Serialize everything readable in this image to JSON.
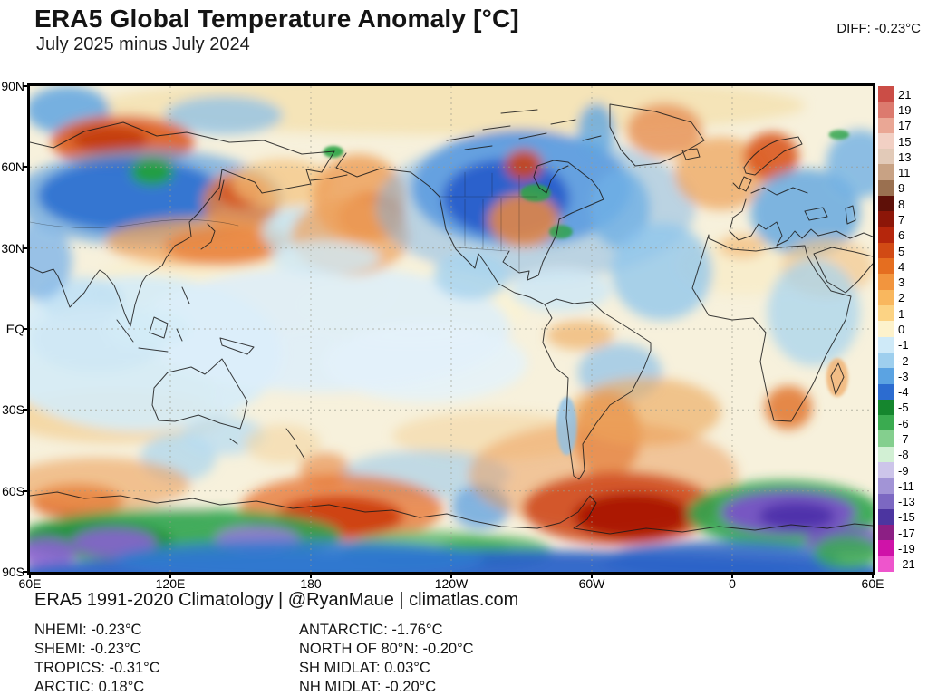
{
  "header": {
    "title": "ERA5 Global Temperature Anomaly [°C]",
    "subtitle": "July 2025 minus July 2024",
    "diff_label": "DIFF: -0.23°C"
  },
  "map": {
    "lat_ticks": [
      "90N",
      "60N",
      "30N",
      "EQ",
      "30S",
      "60S",
      "90S"
    ],
    "lon_ticks": [
      "60E",
      "120E",
      "180",
      "120W",
      "60W",
      "0",
      "60E"
    ]
  },
  "colorbar": {
    "labels": [
      "21",
      "19",
      "17",
      "15",
      "13",
      "11",
      "9",
      "8",
      "7",
      "6",
      "5",
      "4",
      "3",
      "2",
      "1",
      "0",
      "-1",
      "-2",
      "-3",
      "-4",
      "-5",
      "-6",
      "-7",
      "-8",
      "-9",
      "-11",
      "-13",
      "-15",
      "-17",
      "-19",
      "-21"
    ],
    "colors": [
      "#cb4d46",
      "#dc7a6e",
      "#eaa795",
      "#f2d0c4",
      "#e2cab8",
      "#c8a284",
      "#9a7050",
      "#5e1008",
      "#8c1608",
      "#b5260c",
      "#d14a14",
      "#e56e20",
      "#f2953e",
      "#f9b75e",
      "#fcd384",
      "#fdf2cc",
      "#cfeaf8",
      "#9ecfee",
      "#5ba3e2",
      "#2c6cd0",
      "#15862e",
      "#3aab50",
      "#84cf8e",
      "#d2f0d4",
      "#cdc5ea",
      "#a294d6",
      "#7c68c2",
      "#4c35a0",
      "#8c1f84",
      "#cf13a8",
      "#ee55cc"
    ]
  },
  "footer": {
    "attribution": "ERA5 1991-2020 Climatology | @RyanMaue | climatlas.com",
    "stats_col1": [
      "NHEMI: -0.23°C",
      "SHEMI: -0.23°C",
      "TROPICS: -0.31°C",
      "ARCTIC: 0.18°C"
    ],
    "stats_col2": [
      "ANTARCTIC: -1.76°C",
      "NORTH OF 80°N: -0.20°C",
      "SH MIDLAT: 0.03°C",
      "NH MIDLAT: -0.20°C"
    ]
  },
  "chart_data": {
    "type": "heatmap",
    "title": "ERA5 Global Temperature Anomaly [°C]",
    "subtitle": "July 2025 minus July 2024",
    "global_diff_c": -0.23,
    "colorbar_range": [
      -21,
      21
    ],
    "region_stats": {
      "NHEMI": -0.23,
      "SHEMI": -0.23,
      "TROPICS": -0.31,
      "ARCTIC": 0.18,
      "ANTARCTIC": -1.76,
      "NORTH OF 80N": -0.2,
      "SH MIDLAT": 0.03,
      "NH MIDLAT": -0.2
    },
    "lat_range": [
      "90S",
      "90N"
    ],
    "lon_ticks": [
      "60E",
      "120E",
      "180",
      "120W",
      "60W",
      "0",
      "60E"
    ]
  },
  "field_blobs": [
    [
      0.5,
      0.04,
      0.42,
      0.06,
      "#f4e2b4",
      0.9
    ],
    [
      0.25,
      0.42,
      0.18,
      0.09,
      "#faf0cc",
      0.9
    ],
    [
      0.08,
      0.63,
      0.14,
      0.08,
      "#f8eec6",
      0.85
    ],
    [
      0.45,
      0.45,
      0.14,
      0.08,
      "#fbf2d2",
      0.8
    ],
    [
      0.85,
      0.37,
      0.08,
      0.06,
      "#f8ecc8",
      0.8
    ],
    [
      0.1,
      0.68,
      0.13,
      0.055,
      "#f3cd90",
      0.65
    ],
    [
      0.55,
      0.72,
      0.12,
      0.05,
      "#f3d6a0",
      0.6
    ],
    [
      0.13,
      0.55,
      0.17,
      0.16,
      "#d5ecf8",
      0.9
    ],
    [
      0.35,
      0.5,
      0.22,
      0.13,
      "#ddeffa",
      0.85
    ],
    [
      0.47,
      0.57,
      0.12,
      0.08,
      "#e4f2fa",
      0.85
    ],
    [
      0.045,
      0.05,
      0.05,
      0.05,
      "#5fa5e0",
      0.85
    ],
    [
      0.23,
      0.06,
      0.07,
      0.04,
      "#8cc0e8",
      0.75
    ],
    [
      0.11,
      0.115,
      0.085,
      0.055,
      "#db5c1e",
      0.9
    ],
    [
      0.095,
      0.11,
      0.045,
      0.028,
      "#c23c10",
      0.9
    ],
    [
      0.14,
      0.23,
      0.16,
      0.1,
      "#5ea0e0",
      0.7
    ],
    [
      0.12,
      0.225,
      0.11,
      0.075,
      "#2e6fd0",
      0.9
    ],
    [
      0.145,
      0.177,
      0.026,
      0.028,
      "#22a03a",
      0.95
    ],
    [
      0.25,
      0.24,
      0.045,
      0.065,
      "#e8813c",
      0.8
    ],
    [
      0.25,
      0.22,
      0.028,
      0.03,
      "#d4501a",
      0.85
    ],
    [
      0.2,
      0.32,
      0.11,
      0.05,
      "#f0a055",
      0.7
    ],
    [
      0.23,
      0.33,
      0.07,
      0.04,
      "#e8823c",
      0.8
    ],
    [
      0.3,
      0.2,
      0.06,
      0.05,
      "#f3c27c",
      0.7
    ],
    [
      0.32,
      0.3,
      0.045,
      0.05,
      "#bfe0f2",
      0.75
    ],
    [
      0.39,
      0.23,
      0.055,
      0.09,
      "#eda15c",
      0.85
    ],
    [
      0.405,
      0.27,
      0.04,
      0.05,
      "#e5803a",
      0.8
    ],
    [
      0.38,
      0.31,
      0.07,
      0.08,
      "#eda15c",
      0.7
    ],
    [
      0.583,
      0.21,
      0.13,
      0.12,
      "#3b82d8",
      0.9
    ],
    [
      0.6,
      0.25,
      0.19,
      0.15,
      "#7fb5e8",
      0.5
    ],
    [
      0.565,
      0.23,
      0.075,
      0.08,
      "#2257c9",
      0.85
    ],
    [
      0.586,
      0.162,
      0.022,
      0.032,
      "#cc4418",
      0.9
    ],
    [
      0.672,
      0.09,
      0.022,
      0.055,
      "#5fa5e0",
      0.8
    ],
    [
      0.586,
      0.276,
      0.042,
      0.055,
      "#ec8a40",
      0.85
    ],
    [
      0.524,
      0.39,
      0.045,
      0.05,
      "#a8d4ee",
      0.85
    ],
    [
      0.35,
      0.354,
      0.065,
      0.035,
      "#cfe8f5",
      0.8
    ],
    [
      0.753,
      0.09,
      0.045,
      0.055,
      "#e8945a",
      0.85
    ],
    [
      0.82,
      0.18,
      0.055,
      0.075,
      "#eda45e",
      0.75
    ],
    [
      0.88,
      0.145,
      0.032,
      0.05,
      "#d9571e",
      0.9
    ],
    [
      0.7,
      0.252,
      0.035,
      0.08,
      "#6fb0e5",
      0.8
    ],
    [
      0.75,
      0.382,
      0.06,
      0.1,
      "#8cc4ec",
      0.75
    ],
    [
      0.92,
      0.26,
      0.065,
      0.09,
      "#5fa5e0",
      0.8
    ],
    [
      0.985,
      0.16,
      0.04,
      0.07,
      "#6fb0e5",
      0.8
    ],
    [
      0.946,
      0.373,
      0.055,
      0.06,
      "#f2c488",
      0.65
    ],
    [
      0.93,
      0.466,
      0.055,
      0.11,
      "#a8d4ee",
      0.75
    ],
    [
      0.9,
      0.662,
      0.028,
      0.045,
      "#e2762e",
      0.85
    ],
    [
      0.958,
      0.6,
      0.013,
      0.04,
      "#f0b070",
      0.8
    ],
    [
      0.63,
      0.42,
      0.06,
      0.045,
      "#cfe8f5",
      0.85
    ],
    [
      0.7,
      0.59,
      0.05,
      0.06,
      "#8cc0e8",
      0.7
    ],
    [
      0.653,
      0.513,
      0.04,
      0.03,
      "#f0b068",
      0.7
    ],
    [
      0.685,
      0.718,
      0.04,
      0.09,
      "#e07030",
      0.8
    ],
    [
      0.73,
      0.67,
      0.09,
      0.07,
      "#edaa60",
      0.65
    ],
    [
      0.06,
      0.438,
      0.05,
      0.045,
      "#bfe0f2",
      0.8
    ],
    [
      0.08,
      0.52,
      0.08,
      0.07,
      "#cfe8f5",
      0.85
    ],
    [
      0.01,
      0.36,
      0.04,
      0.08,
      "#7fb5e8",
      0.8
    ],
    [
      0.14,
      0.5,
      0.05,
      0.04,
      "#d5ecf8",
      0.8
    ],
    [
      0.176,
      0.765,
      0.045,
      0.05,
      "#a8d4ee",
      0.7
    ],
    [
      0.23,
      0.72,
      0.05,
      0.04,
      "#b8dcf2",
      0.75
    ],
    [
      0.35,
      0.79,
      0.03,
      0.035,
      "#e89050",
      0.7
    ],
    [
      0.47,
      0.8,
      0.1,
      0.05,
      "#9ccae9",
      0.6
    ],
    [
      0.535,
      0.867,
      0.035,
      0.045,
      "#5b9fe0",
      0.75
    ],
    [
      0.13,
      0.885,
      0.1,
      0.03,
      "#f2efe2",
      0.8
    ],
    [
      0.056,
      0.855,
      0.055,
      0.035,
      "#dd5c1e",
      0.9
    ],
    [
      0.08,
      0.82,
      0.11,
      0.055,
      "#eda05a",
      0.6
    ],
    [
      0.37,
      0.87,
      0.12,
      0.07,
      "#e5702e",
      0.75
    ],
    [
      0.368,
      0.886,
      0.075,
      0.042,
      "#cc3b10",
      0.9
    ],
    [
      0.68,
      0.8,
      0.16,
      0.11,
      "#eb9a55",
      0.5
    ],
    [
      0.7,
      0.87,
      0.115,
      0.075,
      "#cc3d10",
      0.8
    ],
    [
      0.715,
      0.885,
      0.07,
      0.047,
      "#a81404",
      0.9
    ],
    [
      0.895,
      0.88,
      0.115,
      0.068,
      "#2fa44c",
      0.9
    ],
    [
      0.9,
      0.878,
      0.08,
      0.045,
      "#7a52c8",
      0.95
    ],
    [
      0.91,
      0.885,
      0.045,
      0.028,
      "#4c2fa8",
      0.9
    ],
    [
      0.97,
      0.935,
      0.05,
      0.03,
      "#7a52c8",
      0.85
    ],
    [
      0.18,
      0.925,
      0.19,
      0.055,
      "#2fa44c",
      0.9
    ],
    [
      0.08,
      0.935,
      0.09,
      0.04,
      "#1e8f3a",
      0.85
    ],
    [
      0.1,
      0.94,
      0.05,
      0.03,
      "#8a63d2",
      0.9
    ],
    [
      0.27,
      0.933,
      0.05,
      0.027,
      "#9a78dc",
      0.85
    ],
    [
      0.02,
      0.96,
      0.035,
      0.03,
      "#8a63d2",
      0.9
    ],
    [
      0.47,
      0.955,
      0.1,
      0.04,
      "#56b868",
      0.8
    ],
    [
      0.55,
      0.96,
      0.07,
      0.033,
      "#3aab50",
      0.8
    ],
    [
      0.5,
      1.01,
      0.54,
      0.055,
      "#2a63c8",
      0.95
    ],
    [
      0.32,
      0.975,
      0.22,
      0.04,
      "#2f7ad0",
      0.85
    ],
    [
      0.82,
      0.975,
      0.14,
      0.038,
      "#2a63c8",
      0.85
    ],
    [
      0.97,
      0.96,
      0.04,
      0.035,
      "#3aab50",
      0.85
    ],
    [
      0.36,
      0.135,
      0.012,
      0.012,
      "#2aa344",
      0.9
    ],
    [
      0.6,
      0.22,
      0.018,
      0.018,
      "#2aa344",
      0.85
    ],
    [
      0.63,
      0.3,
      0.014,
      0.014,
      "#2aa344",
      0.8
    ],
    [
      0.3,
      0.737,
      0.045,
      0.04,
      "#f3d6a0",
      0.6
    ],
    [
      0.637,
      0.7,
      0.012,
      0.06,
      "#8cc0e8",
      0.8
    ],
    [
      0.845,
      0.33,
      0.028,
      0.025,
      "#f2bc7c",
      0.7
    ],
    [
      0.96,
      0.1,
      0.012,
      0.01,
      "#2aa344",
      0.8
    ]
  ]
}
